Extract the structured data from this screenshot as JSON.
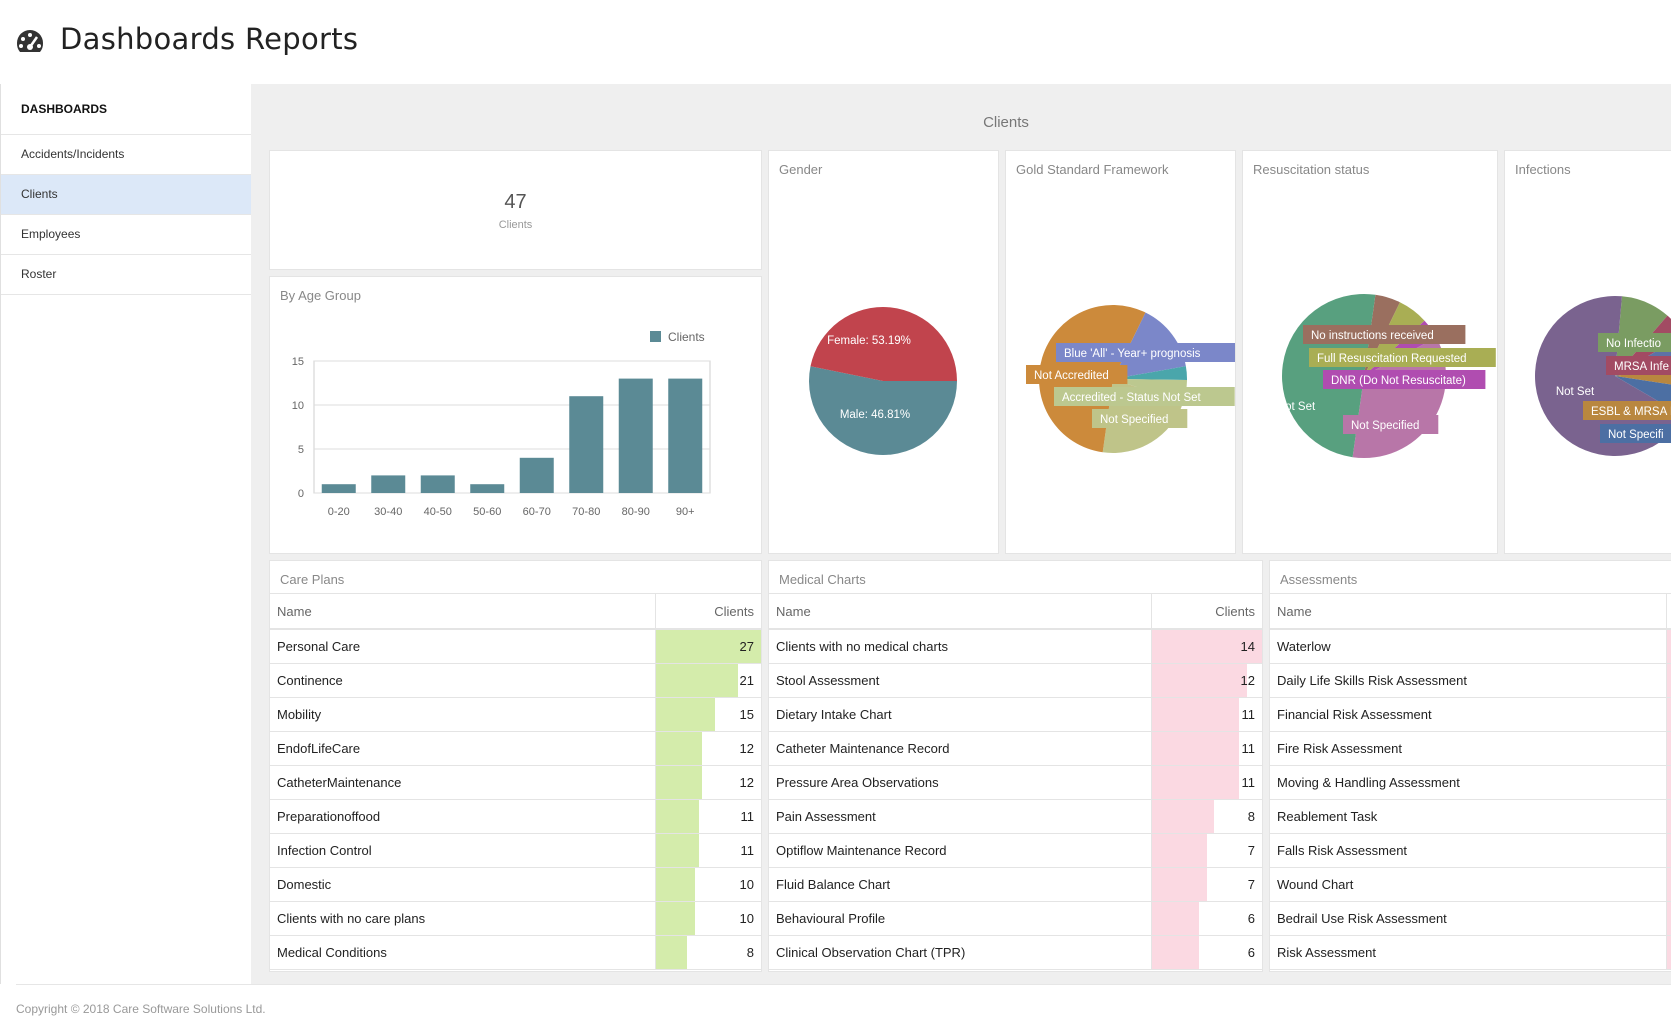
{
  "header": {
    "title": "Dashboards Reports",
    "icon": "dashboard-gauge-icon"
  },
  "sidebar": {
    "heading": "DASHBOARDS",
    "items": [
      {
        "label": "Accidents/Incidents",
        "active": false
      },
      {
        "label": "Clients",
        "active": true
      },
      {
        "label": "Employees",
        "active": false
      },
      {
        "label": "Roster",
        "active": false
      }
    ]
  },
  "section": {
    "title": "Clients"
  },
  "total": {
    "value": "47",
    "label": "Clients"
  },
  "age_group": {
    "title": "By Age Group"
  },
  "gender": {
    "title": "Gender"
  },
  "gsf": {
    "title": "Gold Standard Framework"
  },
  "resus": {
    "title": "Resuscitation status"
  },
  "infections": {
    "title": "Infections"
  },
  "chart_data": [
    {
      "type": "bar",
      "title": "By Age Group",
      "categories": [
        "0-20",
        "30-40",
        "40-50",
        "50-60",
        "60-70",
        "70-80",
        "80-90",
        "90+"
      ],
      "series": [
        {
          "name": "Clients",
          "values": [
            1,
            2,
            2,
            1,
            4,
            11,
            13,
            13
          ]
        }
      ],
      "ylim": [
        0,
        15
      ],
      "yticks": [
        0,
        5,
        10,
        15
      ],
      "legend": "top-right",
      "color": "#5b8a95"
    },
    {
      "type": "pie",
      "title": "Gender",
      "slices": [
        {
          "label": "Female: 53.19%",
          "value": 53.19,
          "color": "#5b8a95"
        },
        {
          "label": "Male: 46.81%",
          "value": 46.81,
          "color": "#c1444d"
        }
      ]
    },
    {
      "type": "pie",
      "title": "Gold Standard Framework",
      "slices": [
        {
          "label": "Blue 'All' - Year+ prognosis",
          "value": 15,
          "color": "#7b87c9"
        },
        {
          "label": "",
          "value": 3,
          "color": "#4aa6ab"
        },
        {
          "label": "Accredited - Status Not Set",
          "value": 5,
          "color": "#bcc88f"
        },
        {
          "label": "Not Specified",
          "value": 22,
          "color": "#bfc489"
        },
        {
          "label": "Not Accredited",
          "value": 55,
          "color": "#cc8a3b"
        }
      ]
    },
    {
      "type": "pie",
      "title": "Resuscitation status",
      "slices": [
        {
          "label": "No instructions received",
          "value": 5,
          "color": "#9a6f5f"
        },
        {
          "label": "Full Resuscitation Requested",
          "value": 6,
          "color": "#a9ae54"
        },
        {
          "label": "DNR (Do Not Resuscitate)",
          "value": 4,
          "color": "#b04db0"
        },
        {
          "label": "Not Specified",
          "value": 35,
          "color": "#b876a8"
        },
        {
          "label": "Not Set",
          "value": 50,
          "color": "#58a07f"
        }
      ]
    },
    {
      "type": "pie",
      "title": "Infections",
      "slices": [
        {
          "label": "No Infectio",
          "value": 10,
          "color": "#7a9c62"
        },
        {
          "label": "MRSA Infe",
          "value": 5,
          "color": "#a24b63"
        },
        {
          "label": "",
          "value": 6,
          "color": "#5d72a6"
        },
        {
          "label": "ESBL & MRSA I",
          "value": 5,
          "color": "#b9873f"
        },
        {
          "label": "Not Specifi",
          "value": 6,
          "color": "#4c6fa3"
        },
        {
          "label": "Not Set",
          "value": 68,
          "color": "#7a638f"
        }
      ]
    }
  ],
  "care_plans": {
    "title": "Care Plans",
    "col_name": "Name",
    "col_clients": "Clients",
    "bar_color": "#d4ecab",
    "rows": [
      {
        "name": "Personal Care",
        "clients": "27",
        "frac": 1.0
      },
      {
        "name": "Continence",
        "clients": "21",
        "frac": 0.78
      },
      {
        "name": "Mobility",
        "clients": "15",
        "frac": 0.56
      },
      {
        "name": "EndofLifeCare",
        "clients": "12",
        "frac": 0.44
      },
      {
        "name": "CatheterMaintenance",
        "clients": "12",
        "frac": 0.44
      },
      {
        "name": "Preparationoffood",
        "clients": "11",
        "frac": 0.41
      },
      {
        "name": "Infection Control",
        "clients": "11",
        "frac": 0.41
      },
      {
        "name": "Domestic",
        "clients": "10",
        "frac": 0.37
      },
      {
        "name": "Clients with no care plans",
        "clients": "10",
        "frac": 0.37
      },
      {
        "name": "Medical Conditions",
        "clients": "8",
        "frac": 0.3
      }
    ]
  },
  "medical_charts": {
    "title": "Medical Charts",
    "col_name": "Name",
    "col_clients": "Clients",
    "bar_color": "#fbd9e2",
    "rows": [
      {
        "name": "Clients with no medical charts",
        "clients": "14",
        "frac": 1.0
      },
      {
        "name": "Stool Assessment",
        "clients": "12",
        "frac": 0.86
      },
      {
        "name": "Dietary Intake Chart",
        "clients": "11",
        "frac": 0.79
      },
      {
        "name": "Catheter Maintenance Record",
        "clients": "11",
        "frac": 0.79
      },
      {
        "name": "Pressure Area Observations",
        "clients": "11",
        "frac": 0.79
      },
      {
        "name": "Pain Assessment",
        "clients": "8",
        "frac": 0.57
      },
      {
        "name": "Optiflow Maintenance Record",
        "clients": "7",
        "frac": 0.5
      },
      {
        "name": "Fluid Balance Chart",
        "clients": "7",
        "frac": 0.5
      },
      {
        "name": "Behavioural Profile",
        "clients": "6",
        "frac": 0.43
      },
      {
        "name": "Clinical Observation Chart (TPR)",
        "clients": "6",
        "frac": 0.43
      }
    ]
  },
  "assessments": {
    "title": "Assessments",
    "col_name": "Name",
    "bar_color": "#fbd9e2",
    "rows": [
      {
        "name": "Waterlow"
      },
      {
        "name": "Daily Life Skills Risk Assessment"
      },
      {
        "name": "Financial Risk Assessment"
      },
      {
        "name": "Fire Risk Assessment"
      },
      {
        "name": "Moving & Handling Assessment"
      },
      {
        "name": "Reablement Task"
      },
      {
        "name": "Falls Risk Assessment"
      },
      {
        "name": "Wound Chart"
      },
      {
        "name": "Bedrail Use Risk Assessment"
      },
      {
        "name": "Risk Assessment"
      }
    ]
  },
  "footer": {
    "text": "Copyright © 2018 Care Software Solutions Ltd."
  }
}
